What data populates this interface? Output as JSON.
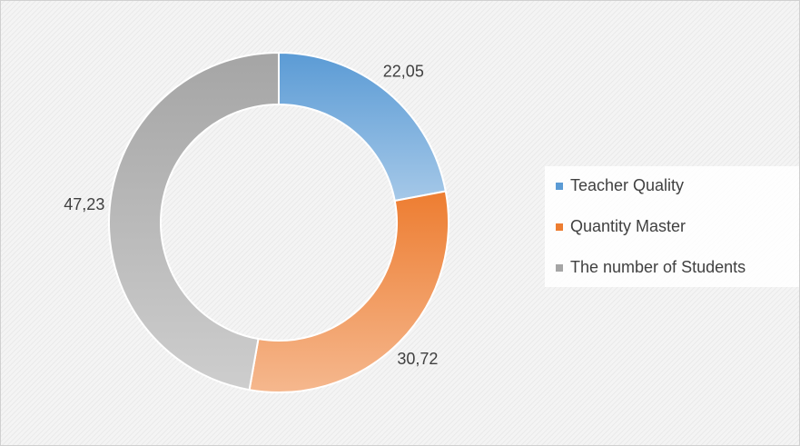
{
  "chart_data": {
    "type": "donut",
    "categories": [
      "Teacher Quality",
      "Quantity Master",
      "The number of Students"
    ],
    "values": [
      22.05,
      30.72,
      47.23
    ],
    "value_labels": [
      "22,05",
      "30,72",
      "47,23"
    ],
    "colors": [
      "#5b9bd5",
      "#ed7d31",
      "#a5a5a5"
    ],
    "legend": "right"
  }
}
